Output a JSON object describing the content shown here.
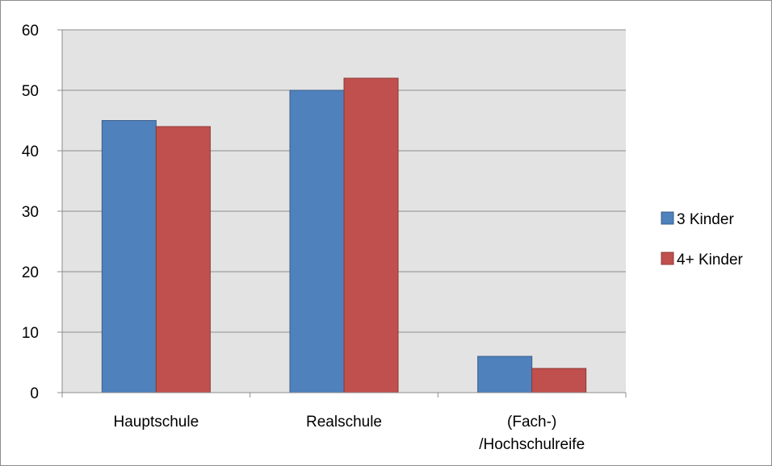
{
  "chart_data": {
    "type": "bar",
    "categories": [
      "Hauptschule",
      "Realschule",
      "(Fach-)\n/Hochschulreife"
    ],
    "series": [
      {
        "name": "3 Kinder",
        "values": [
          45,
          50,
          6
        ],
        "color": "#4f81bd"
      },
      {
        "name": "4+ Kinder",
        "values": [
          44,
          52,
          4
        ],
        "color": "#c0504d"
      }
    ],
    "ylim": [
      0,
      60
    ],
    "yticks": [
      0,
      10,
      20,
      30,
      40,
      50,
      60
    ],
    "grid": true,
    "legend_position": "right",
    "plot_background": "#e3e3e3",
    "title": "",
    "xlabel": "",
    "ylabel": ""
  }
}
